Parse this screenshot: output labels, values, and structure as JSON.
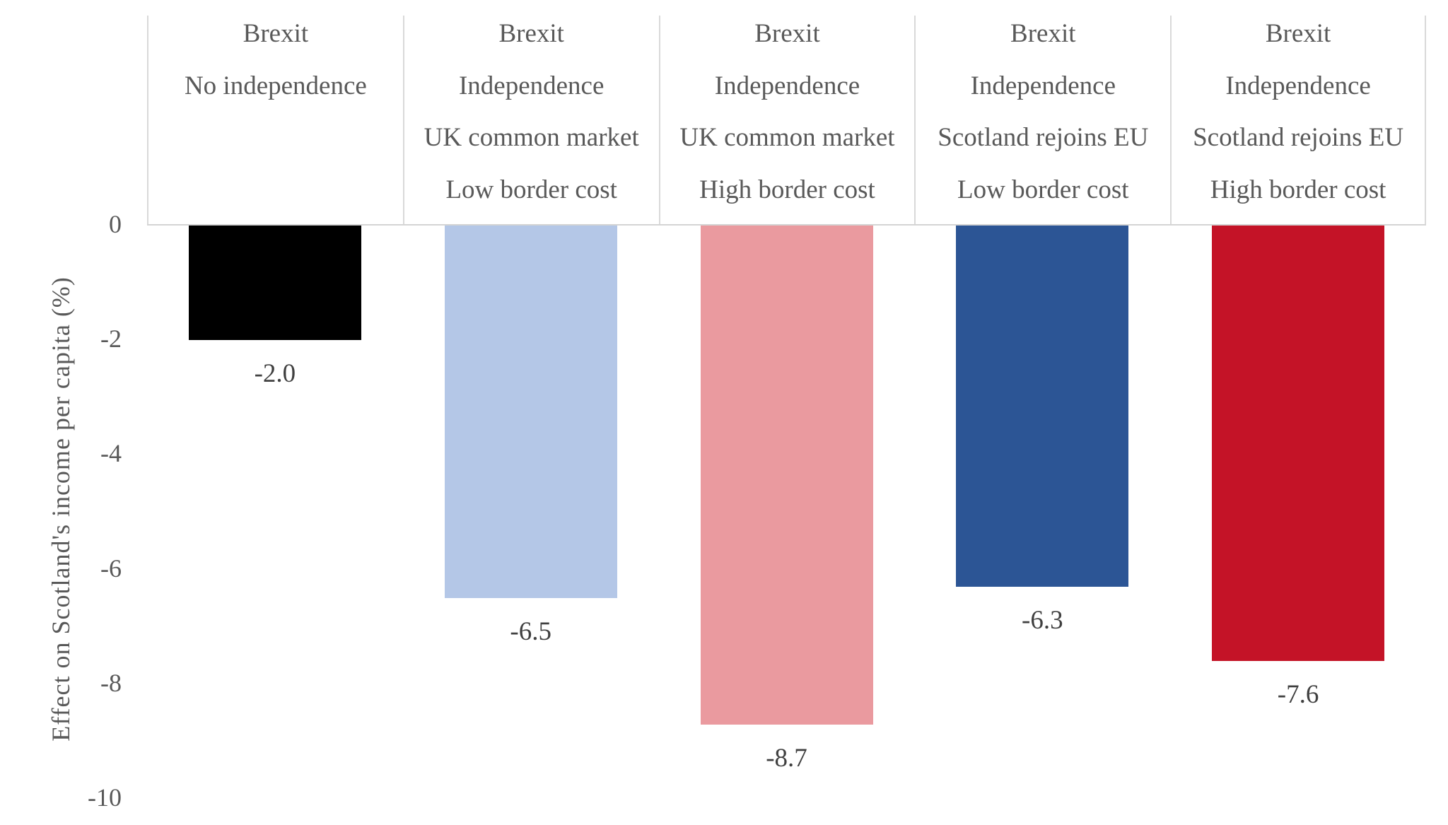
{
  "chart_data": {
    "type": "bar",
    "title": "",
    "xlabel": "",
    "ylabel": "Effect on Scotland's income per capita (%)",
    "ylim": [
      -10,
      0
    ],
    "yticks": [
      "0",
      "-2",
      "-4",
      "-6",
      "-8",
      "-10"
    ],
    "grid": false,
    "legend": "none",
    "categories": [
      [
        "Brexit",
        "No independence"
      ],
      [
        "Brexit",
        "Independence",
        "UK common market",
        "Low border cost"
      ],
      [
        "Brexit",
        "Independence",
        "UK common market",
        "High border cost"
      ],
      [
        "Brexit",
        "Independence",
        "Scotland rejoins EU",
        "Low border cost"
      ],
      [
        "Brexit",
        "Independence",
        "Scotland rejoins EU",
        "High border cost"
      ]
    ],
    "values": [
      -2.0,
      -6.5,
      -8.7,
      -6.3,
      -7.6
    ],
    "value_labels": [
      "-2.0",
      "-6.5",
      "-8.7",
      "-6.3",
      "-7.6"
    ],
    "colors": [
      "#000000",
      "#B4C7E7",
      "#EA9A9F",
      "#2C5595",
      "#C41327"
    ]
  }
}
